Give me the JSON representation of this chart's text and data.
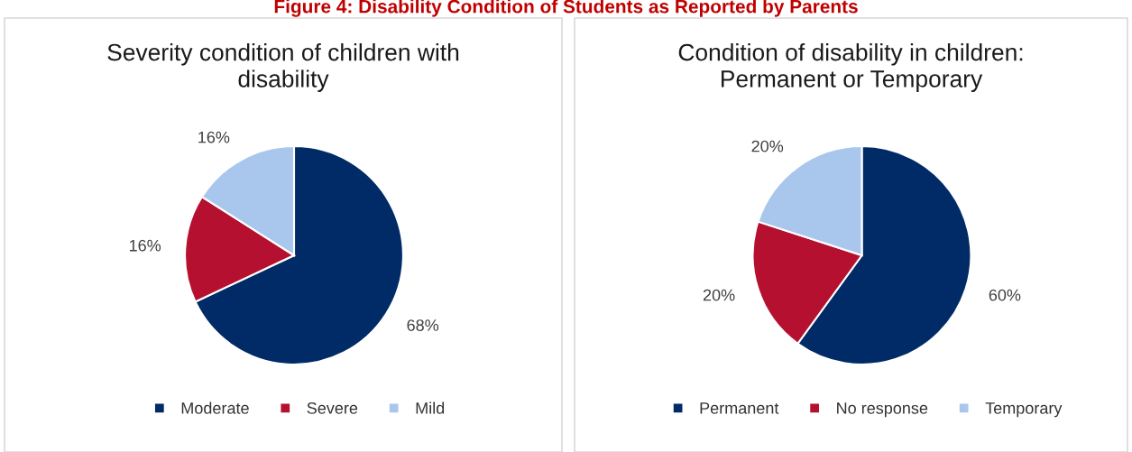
{
  "chart_data": [
    {
      "type": "pie",
      "title": "Severity condition of children with\ndisability",
      "annotations": [
        "Figure 4: Disability Condition of Students as Reported by Parents"
      ],
      "categories": [
        "Moderate",
        "Severe",
        "Mild"
      ],
      "values": [
        68,
        16,
        16
      ],
      "value_labels": [
        "68%",
        "16%",
        "16%"
      ],
      "colors": [
        "#002b66",
        "#b5102f",
        "#a9c6ec"
      ],
      "legend": "bottom"
    },
    {
      "type": "pie",
      "title": "Condition of disability in children:\nPermanent or Temporary",
      "categories": [
        "Permanent",
        "No response",
        "Temporary"
      ],
      "values": [
        60,
        20,
        20
      ],
      "value_labels": [
        "60%",
        "20%",
        "20%"
      ],
      "colors": [
        "#002b66",
        "#b5102f",
        "#a9c6ec"
      ],
      "legend": "bottom"
    }
  ]
}
